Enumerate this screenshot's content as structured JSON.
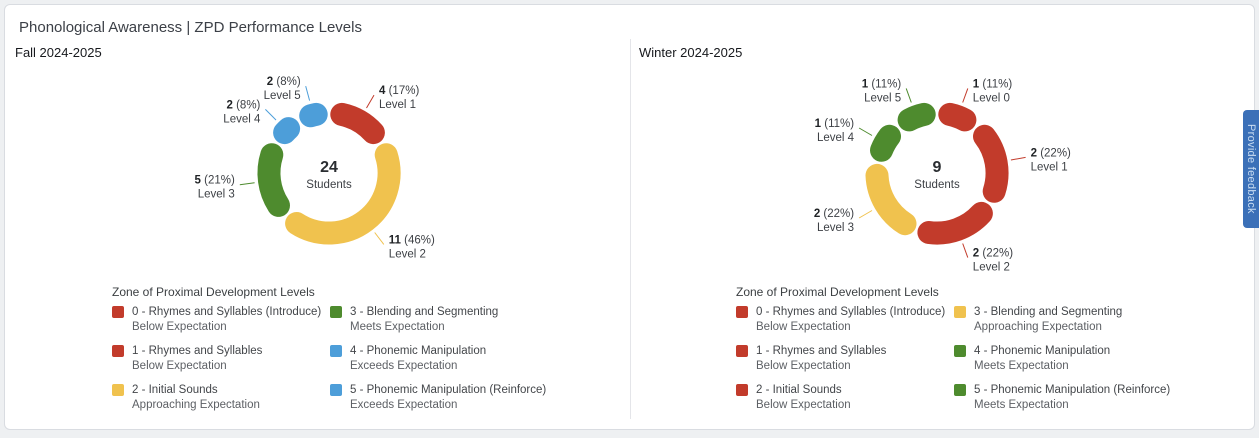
{
  "page": {
    "title": "Phonological Awareness | ZPD Performance Levels",
    "feedback_button_label": "Provide feedback"
  },
  "colors": {
    "below": "#c23b2b",
    "approaching": "#f0c24e",
    "meets": "#4e8b2e",
    "exceeds": "#4d9ed9"
  },
  "chart_data": [
    {
      "type": "donut",
      "title": "Fall 2024-2025",
      "center": {
        "value": "24",
        "label": "Students"
      },
      "segments": [
        {
          "level": "Level 1",
          "count": 4,
          "percent": 17,
          "color_key": "below"
        },
        {
          "level": "Level 2",
          "count": 11,
          "percent": 46,
          "color_key": "approaching"
        },
        {
          "level": "Level 3",
          "count": 5,
          "percent": 21,
          "color_key": "meets"
        },
        {
          "level": "Level 4",
          "count": 2,
          "percent": 8,
          "color_key": "exceeds"
        },
        {
          "level": "Level 5",
          "count": 2,
          "percent": 8,
          "color_key": "exceeds"
        }
      ],
      "legend": {
        "title": "Zone of Proximal Development Levels",
        "items": [
          {
            "color_key": "below",
            "name": "0 - Rhymes and Syllables (Introduce)",
            "expectation": "Below Expectation"
          },
          {
            "color_key": "below",
            "name": "1 - Rhymes and Syllables",
            "expectation": "Below Expectation"
          },
          {
            "color_key": "approaching",
            "name": "2 - Initial Sounds",
            "expectation": "Approaching Expectation"
          },
          {
            "color_key": "meets",
            "name": "3 - Blending and Segmenting",
            "expectation": "Meets Expectation"
          },
          {
            "color_key": "exceeds",
            "name": "4 - Phonemic Manipulation",
            "expectation": "Exceeds Expectation"
          },
          {
            "color_key": "exceeds",
            "name": "5 - Phonemic Manipulation (Reinforce)",
            "expectation": "Exceeds Expectation"
          }
        ]
      }
    },
    {
      "type": "donut",
      "title": "Winter 2024-2025",
      "center": {
        "value": "9",
        "label": "Students"
      },
      "segments": [
        {
          "level": "Level 0",
          "count": 1,
          "percent": 11,
          "color_key": "below"
        },
        {
          "level": "Level 1",
          "count": 2,
          "percent": 22,
          "color_key": "below"
        },
        {
          "level": "Level 2",
          "count": 2,
          "percent": 22,
          "color_key": "below"
        },
        {
          "level": "Level 3",
          "count": 2,
          "percent": 22,
          "color_key": "approaching"
        },
        {
          "level": "Level 4",
          "count": 1,
          "percent": 11,
          "color_key": "meets"
        },
        {
          "level": "Level 5",
          "count": 1,
          "percent": 11,
          "color_key": "meets"
        }
      ],
      "legend": {
        "title": "Zone of Proximal Development Levels",
        "items": [
          {
            "color_key": "below",
            "name": "0 - Rhymes and Syllables (Introduce)",
            "expectation": "Below Expectation"
          },
          {
            "color_key": "below",
            "name": "1 - Rhymes and Syllables",
            "expectation": "Below Expectation"
          },
          {
            "color_key": "below",
            "name": "2 - Initial Sounds",
            "expectation": "Below Expectation"
          },
          {
            "color_key": "approaching",
            "name": "3 - Blending and Segmenting",
            "expectation": "Approaching Expectation"
          },
          {
            "color_key": "meets",
            "name": "4 - Phonemic Manipulation",
            "expectation": "Meets Expectation"
          },
          {
            "color_key": "meets",
            "name": "5 - Phonemic Manipulation (Reinforce)",
            "expectation": "Meets Expectation"
          }
        ]
      }
    }
  ]
}
